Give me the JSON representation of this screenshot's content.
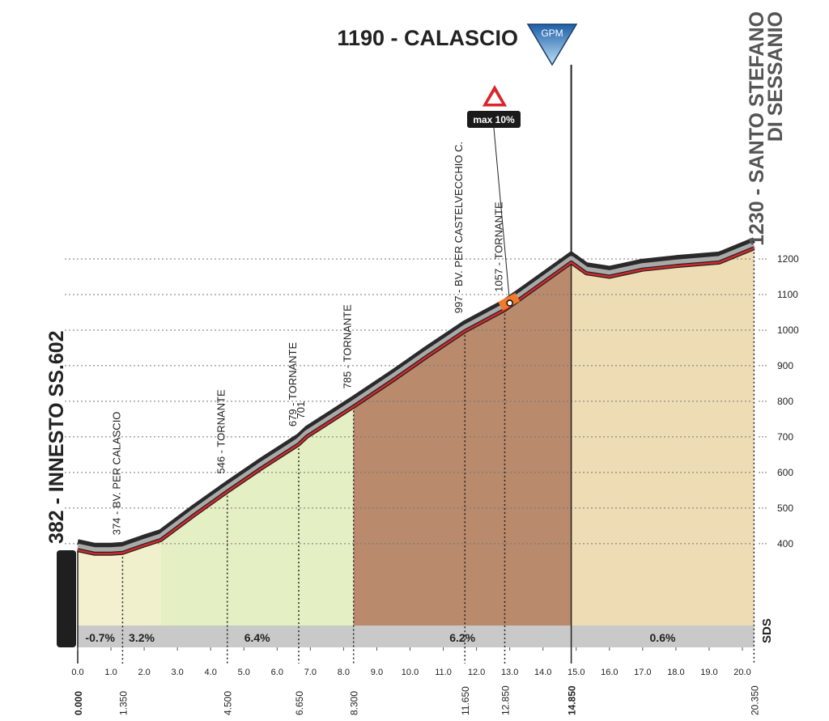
{
  "chart_data": {
    "type": "profile",
    "summit": {
      "label": "1190 - CALASCIO",
      "badge": "GPM",
      "x": 14.85
    },
    "max_gradient": {
      "label": "max 10%",
      "x": 13.0
    },
    "start_label": "382 - INNESTO SS.602",
    "finish_label": [
      "1230 - SANTO STEFANO",
      "DI SESSANIO"
    ],
    "brand": "SDS",
    "x": [
      0,
      0.5,
      1,
      1.35,
      2,
      2.5,
      3.5,
      4.5,
      5.5,
      6.65,
      6.9,
      8.3,
      9.5,
      10.5,
      11.65,
      12.85,
      13.5,
      14.85,
      15.3,
      16,
      17,
      18,
      19.3,
      20.35
    ],
    "values": [
      382,
      372,
      372,
      374,
      395,
      410,
      480,
      546,
      610,
      679,
      701,
      785,
      860,
      925,
      997,
      1057,
      1100,
      1190,
      1160,
      1150,
      1170,
      1180,
      1190,
      1230
    ],
    "xlim": [
      0,
      20.35
    ],
    "ylim": [
      170,
      1300
    ],
    "xticks": [
      {
        "value": 0,
        "label": "0.0"
      },
      {
        "value": 1,
        "label": "1.0"
      },
      {
        "value": 2,
        "label": "2.0"
      },
      {
        "value": 3,
        "label": "3.0"
      },
      {
        "value": 4,
        "label": "4.0"
      },
      {
        "value": 5,
        "label": "5.0"
      },
      {
        "value": 6,
        "label": "6.0"
      },
      {
        "value": 7,
        "label": "7.0"
      },
      {
        "value": 8,
        "label": "8.0"
      },
      {
        "value": 9,
        "label": "9.0"
      },
      {
        "value": 10,
        "label": "10.0"
      },
      {
        "value": 11,
        "label": "11.0"
      },
      {
        "value": 12,
        "label": "12.0"
      },
      {
        "value": 13,
        "label": "13.0"
      },
      {
        "value": 14,
        "label": "14.0"
      },
      {
        "value": 15,
        "label": "15.0"
      },
      {
        "value": 16,
        "label": "16.0"
      },
      {
        "value": 17,
        "label": "17.0"
      },
      {
        "value": 18,
        "label": "18.0"
      },
      {
        "value": 19,
        "label": "19.0"
      },
      {
        "value": 20,
        "label": "20.0"
      }
    ],
    "yticks": [
      400,
      500,
      600,
      700,
      800,
      900,
      1000,
      1100,
      1200
    ],
    "grid": true,
    "km_markers": [
      {
        "value": 0,
        "label": "0.000",
        "bold": true
      },
      {
        "value": 1.35,
        "label": "1.350"
      },
      {
        "value": 4.5,
        "label": "4.500"
      },
      {
        "value": 6.65,
        "label": "6.650"
      },
      {
        "value": 8.3,
        "label": "8.300"
      },
      {
        "value": 11.65,
        "label": "11.650"
      },
      {
        "value": 12.85,
        "label": "12.850"
      },
      {
        "value": 14.85,
        "label": "14.850",
        "bold": true
      },
      {
        "value": 20.35,
        "label": "20.350"
      }
    ],
    "segments": [
      {
        "from": 0,
        "to": 1.35,
        "value": -0.7,
        "label": "-0.7%",
        "color": "#f3f0cf"
      },
      {
        "from": 1.35,
        "to": 2.5,
        "value": 3.2,
        "label": "3.2%",
        "color": "#f1f0cc"
      },
      {
        "from": 2.5,
        "to": 8.3,
        "value": 6.4,
        "label": "6.4%",
        "color": "#e4efc4"
      },
      {
        "from": 8.3,
        "to": 14.85,
        "value": 6.2,
        "label": "6.2%",
        "color": "#b98a6c"
      },
      {
        "from": 14.85,
        "to": 20.35,
        "value": 0.6,
        "label": "0.6%",
        "color": "#eedcb4"
      }
    ],
    "waypoints": [
      {
        "x": 1.35,
        "label": "374 - BV. PER CALASCIO"
      },
      {
        "x": 4.5,
        "label": "546 - TORNANTE"
      },
      {
        "x": 6.65,
        "label": "679 - TORNANTE"
      },
      {
        "x": 6.9,
        "label": "701"
      },
      {
        "x": 8.3,
        "label": "785 - TORNANTE"
      },
      {
        "x": 11.65,
        "label": "997 - BV. PER CASTELVECCHIO C."
      },
      {
        "x": 12.85,
        "label": "1057 - TORNANTE"
      }
    ]
  }
}
